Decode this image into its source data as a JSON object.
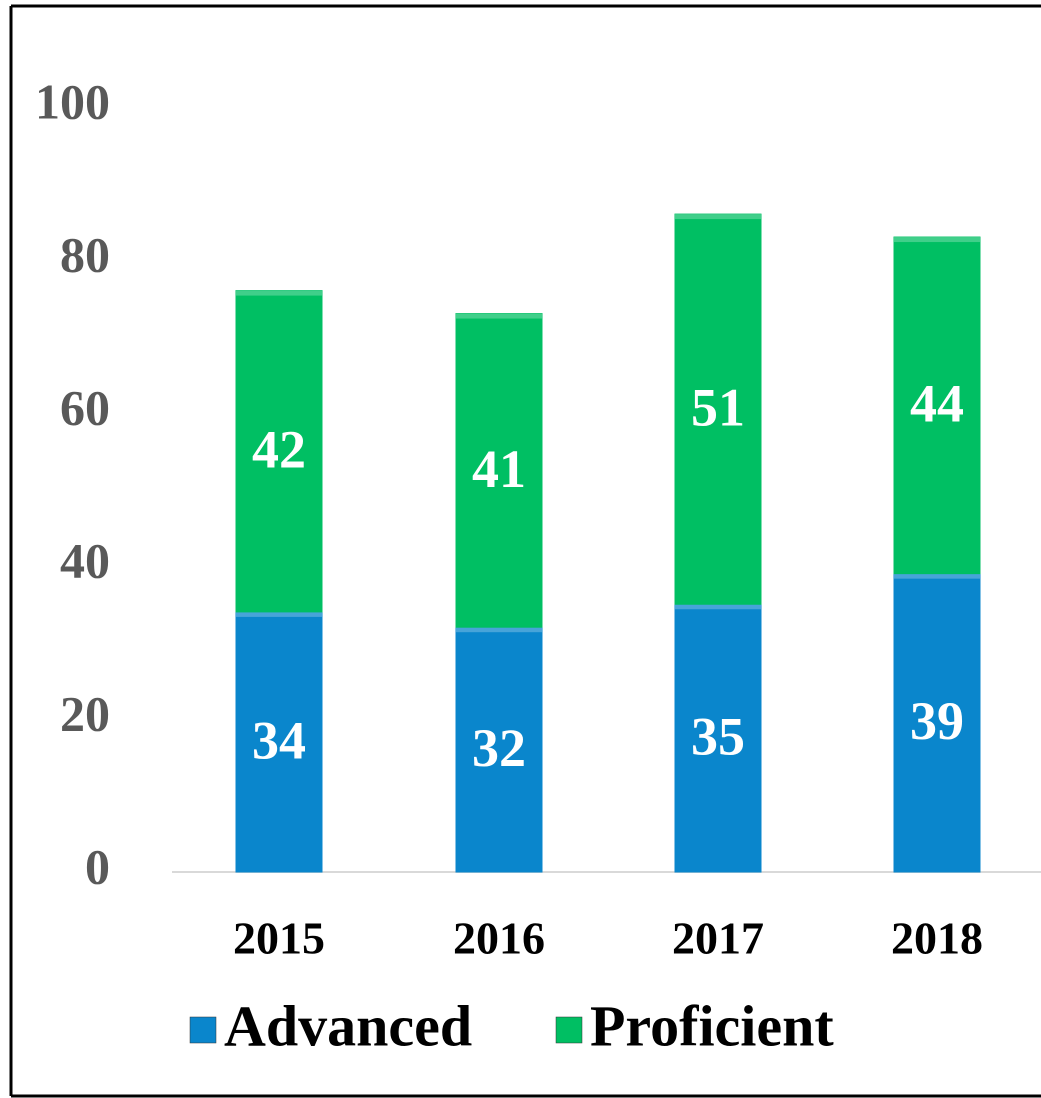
{
  "chart_data": {
    "type": "stacked_bar",
    "categories": [
      "2015",
      "2016",
      "2017",
      "2018"
    ],
    "series": [
      {
        "name": "Advanced",
        "color": "#0a86cc",
        "values": [
          34,
          32,
          35,
          39
        ]
      },
      {
        "name": "Proficient",
        "color": "#00bf63",
        "values": [
          42,
          41,
          51,
          44
        ]
      }
    ],
    "ylim": [
      0,
      100
    ],
    "yticks": [
      0,
      20,
      40,
      60,
      80,
      100
    ],
    "grid": false,
    "legend": "bottom"
  }
}
